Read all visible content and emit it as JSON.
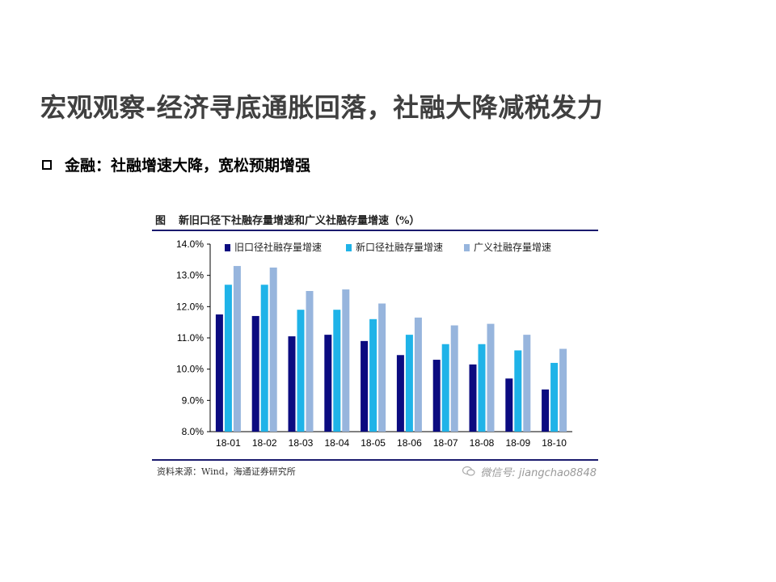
{
  "slide": {
    "title": "宏观观察-经济寻底通胀回落，社融大降减税发力",
    "bullet": "金融：社融增速大降，宽松预期增强"
  },
  "figure": {
    "label": "图",
    "title": "新旧口径下社融存量增速和广义社融存量增速（%）",
    "source": "资料来源：Wind，海通证券研究所",
    "watermark": "微信号: jiangchao8848"
  },
  "colors": {
    "series1": "#0b0b80",
    "series2": "#1fb3e8",
    "series3": "#97b5dd",
    "axis": "#000000"
  },
  "chart_data": {
    "type": "bar",
    "title": "新旧口径下社融存量增速和广义社融存量增速（%）",
    "categories": [
      "18-01",
      "18-02",
      "18-03",
      "18-04",
      "18-05",
      "18-06",
      "18-07",
      "18-08",
      "18-09",
      "18-10"
    ],
    "series": [
      {
        "name": "旧口径社融存量增速",
        "values": [
          11.75,
          11.7,
          11.05,
          11.1,
          10.9,
          10.45,
          10.3,
          10.15,
          9.7,
          9.35
        ]
      },
      {
        "name": "新口径社融存量增速",
        "values": [
          12.7,
          12.7,
          11.9,
          11.9,
          11.6,
          11.1,
          10.8,
          10.8,
          10.6,
          10.2
        ]
      },
      {
        "name": "广义社融存量增速",
        "values": [
          13.3,
          13.25,
          12.5,
          12.55,
          12.1,
          11.65,
          11.4,
          11.45,
          11.1,
          10.65
        ]
      }
    ],
    "ylim": [
      8.0,
      14.0
    ],
    "yticks": [
      "8.0%",
      "9.0%",
      "10.0%",
      "11.0%",
      "12.0%",
      "13.0%",
      "14.0%"
    ],
    "legend_position": "top",
    "grid": false
  }
}
